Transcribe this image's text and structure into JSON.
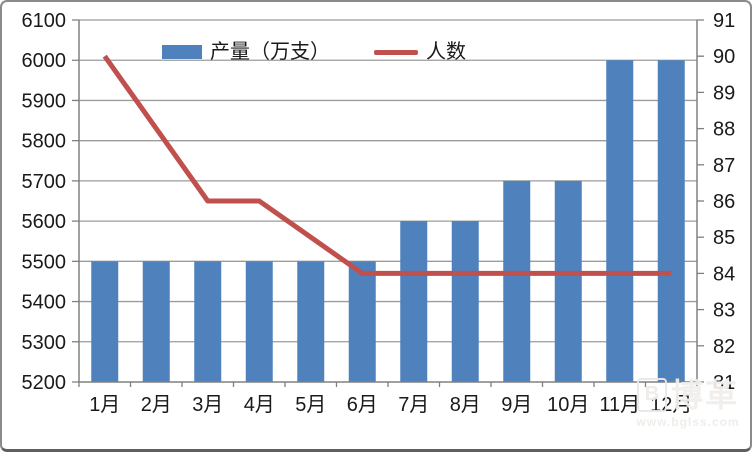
{
  "legend": {
    "bar_label": "产量（万支）",
    "line_label": "人数"
  },
  "watermark": {
    "logo_letter": "B",
    "logo_text": "博革",
    "url": "www.bglss.com"
  },
  "colors": {
    "bar": "#4F81BD",
    "line": "#C0504D",
    "grid": "#9c9c9c",
    "axis": "#808080",
    "text": "#1a1a1a"
  },
  "chart_data": {
    "type": "bar",
    "subtype": "combo-bar-line",
    "title": "",
    "categories": [
      "1月",
      "2月",
      "3月",
      "4月",
      "5月",
      "6月",
      "7月",
      "8月",
      "9月",
      "10月",
      "11月",
      "12月"
    ],
    "series": [
      {
        "name": "产量（万支）",
        "type": "bar",
        "axis": "left",
        "color": "#4F81BD",
        "values": [
          5500,
          5500,
          5500,
          5500,
          5500,
          5500,
          5600,
          5600,
          5700,
          5700,
          6000,
          6000
        ]
      },
      {
        "name": "人数",
        "type": "line",
        "axis": "right",
        "color": "#C0504D",
        "values": [
          90,
          88,
          86,
          86,
          85,
          84,
          84,
          84,
          84,
          84,
          84,
          84
        ]
      }
    ],
    "left_axis": {
      "min": 5200,
      "max": 6100,
      "step": 100
    },
    "right_axis": {
      "min": 81,
      "max": 91,
      "step": 1
    },
    "grid": true,
    "legend_position": "top-center"
  }
}
